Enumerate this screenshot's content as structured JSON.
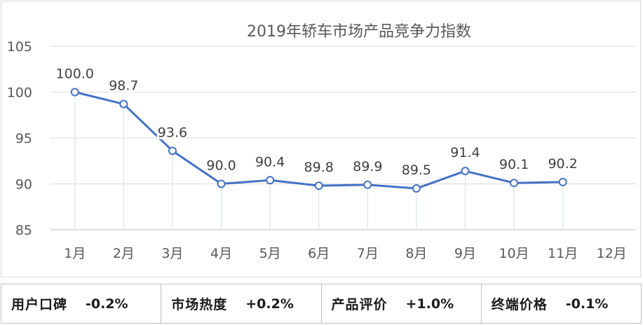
{
  "chart_data": {
    "type": "line",
    "title": "2019年轿车市场产品竞争力指数",
    "categories": [
      "1月",
      "2月",
      "3月",
      "4月",
      "5月",
      "6月",
      "7月",
      "8月",
      "9月",
      "10月",
      "11月",
      "12月"
    ],
    "series": [
      {
        "values": [
          100.0,
          98.7,
          93.6,
          90.0,
          90.4,
          89.8,
          89.9,
          89.5,
          91.4,
          90.1,
          90.2,
          null
        ]
      }
    ],
    "data_labels": [
      "100.0",
      "98.7",
      "93.6",
      "90.0",
      "90.4",
      "89.8",
      "89.9",
      "89.5",
      "91.4",
      "90.1",
      "90.2"
    ],
    "ylim": [
      85,
      105
    ],
    "yticks": [
      "85",
      "90",
      "95",
      "100",
      "105"
    ],
    "grid": "horizontal",
    "line_color": "#4472c4"
  },
  "summary": [
    {
      "label": "用户口碑",
      "value": "-0.2%"
    },
    {
      "label": "市场热度",
      "value": "+0.2%"
    },
    {
      "label": "产品评价",
      "value": "+1.0%"
    },
    {
      "label": "终端价格",
      "value": "-0.1%"
    }
  ]
}
